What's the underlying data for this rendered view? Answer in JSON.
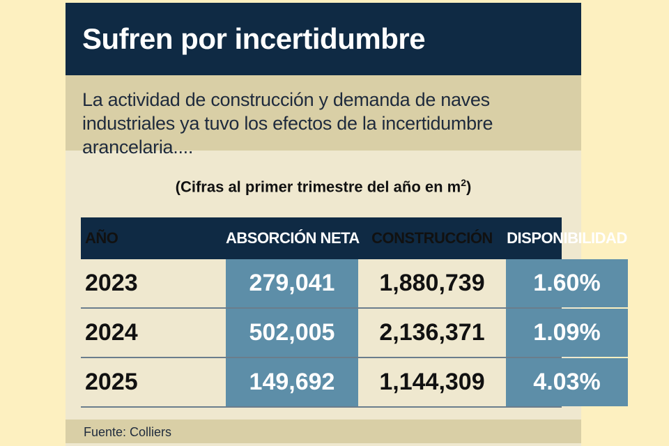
{
  "title": "Sufren por incertidumbre",
  "intro": "La actividad de construcción y demanda de naves industriales ya tuvo los efectos de la incertidumbre arancelaria....",
  "note": {
    "text": "(Cifras al primer trimestre del año en m",
    "superscript": "2",
    "close": ")"
  },
  "table": {
    "headers": [
      "AÑO",
      "ABSORCIÓN NETA",
      "CONSTRUCCIÓN",
      "DISPONIBILIDAD"
    ],
    "rows": [
      {
        "year": "2023",
        "absorcion": "279,041",
        "construccion": "1,880,739",
        "disponibilidad": "1.60%"
      },
      {
        "year": "2024",
        "absorcion": "502,005",
        "construccion": "2,136,371",
        "disponibilidad": "1.09%"
      },
      {
        "year": "2025",
        "absorcion": "149,692",
        "construccion": "1,144,309",
        "disponibilidad": "4.03%"
      }
    ]
  },
  "source": "Fuente: Colliers",
  "colors": {
    "navy": "#0f2a44",
    "steel_blue": "#5d8ea8",
    "tan": "#d9cfa6",
    "cream": "#efe8cf",
    "background": "#fdf0c0"
  }
}
